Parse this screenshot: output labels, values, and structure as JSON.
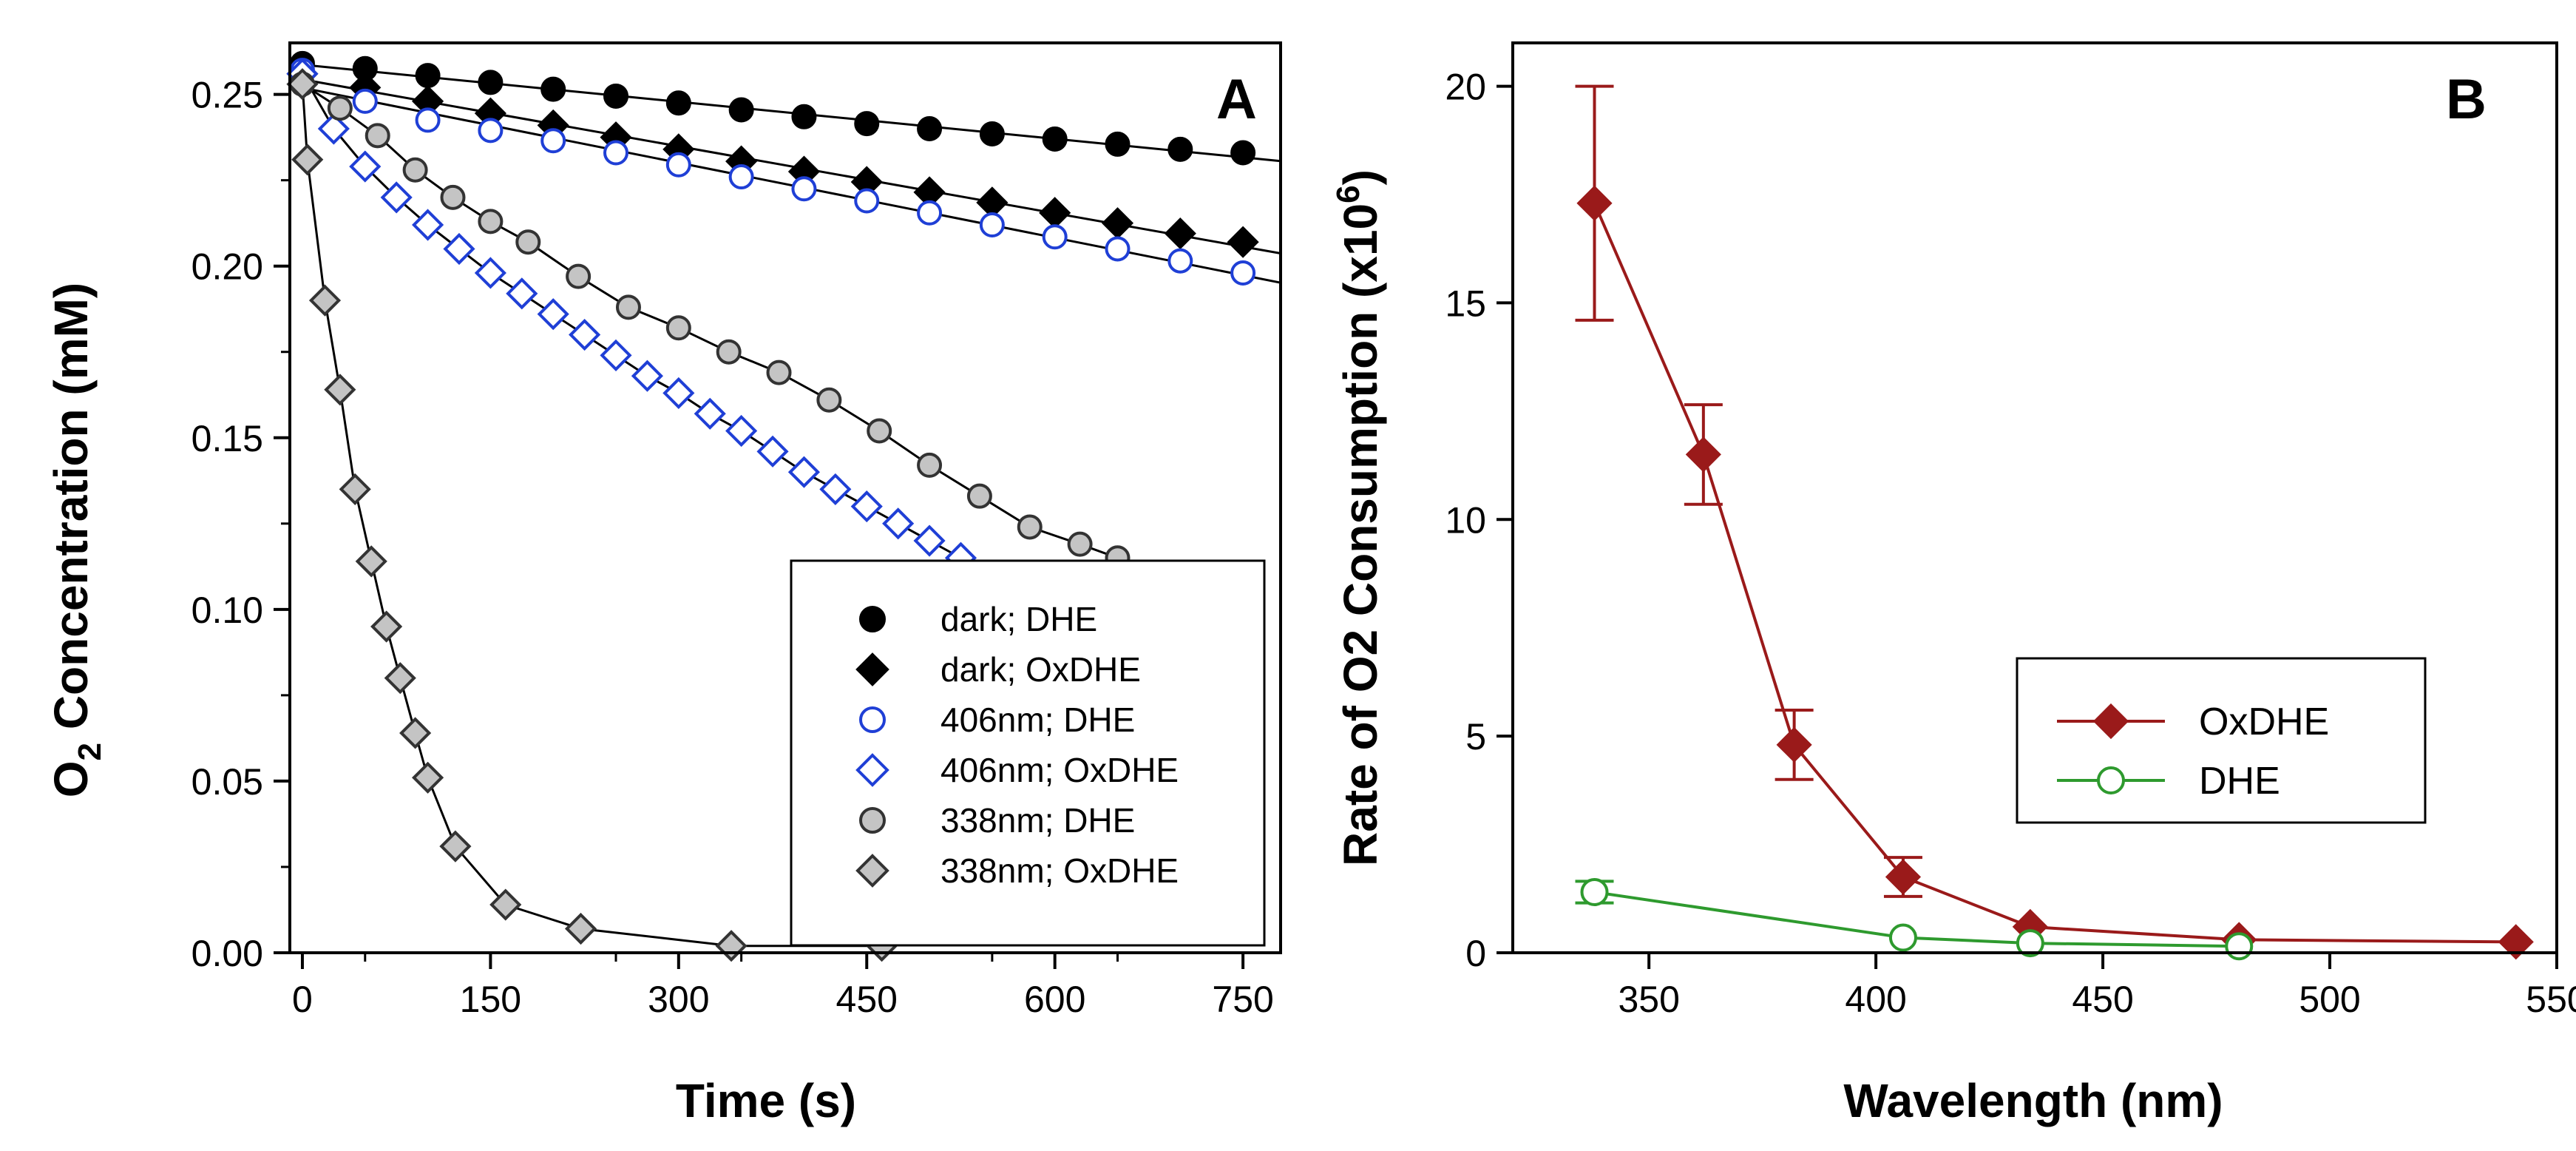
{
  "chart_data": [
    {
      "panel": "A",
      "type": "scatter",
      "panel_label": "A",
      "xlabel": "Time (s)",
      "ylabel": "O2 Concentration (mM)",
      "ylabel_parts": {
        "main": "O",
        "sub": "2",
        "rest": " Concentration (mM)"
      },
      "xlim": [
        -10,
        780
      ],
      "ylim": [
        0,
        0.265
      ],
      "xticks": [
        0,
        150,
        300,
        450,
        600,
        750
      ],
      "xtick_labels": [
        "0",
        "150",
        "300",
        "450",
        "600",
        "750"
      ],
      "yticks": [
        0,
        0.05,
        0.1,
        0.15,
        0.2,
        0.25
      ],
      "ytick_labels": [
        "0.00",
        "0.05",
        "0.10",
        "0.15",
        "0.20",
        "0.25"
      ],
      "legend_position": "lower-right",
      "series": [
        {
          "name": "dark; DHE",
          "marker": "circle",
          "fill": "#000000",
          "stroke": "#000000",
          "fit": "linear",
          "x": [
            0,
            50,
            100,
            150,
            200,
            250,
            300,
            350,
            400,
            450,
            500,
            550,
            600,
            650,
            700,
            750
          ],
          "y": [
            0.259,
            0.2575,
            0.2555,
            0.2535,
            0.2515,
            0.2495,
            0.2475,
            0.2455,
            0.2435,
            0.2415,
            0.24,
            0.2385,
            0.237,
            0.2355,
            0.234,
            0.233
          ]
        },
        {
          "name": "dark; OxDHE",
          "marker": "diamond",
          "fill": "#000000",
          "stroke": "#000000",
          "fit": "linear",
          "x": [
            0,
            50,
            100,
            150,
            200,
            250,
            300,
            350,
            400,
            450,
            500,
            550,
            600,
            650,
            700,
            750
          ],
          "y": [
            0.256,
            0.252,
            0.248,
            0.2445,
            0.241,
            0.2375,
            0.234,
            0.2305,
            0.2275,
            0.2245,
            0.2215,
            0.2185,
            0.2155,
            0.2125,
            0.2095,
            0.207
          ]
        },
        {
          "name": "406nm; DHE",
          "marker": "circle",
          "fill": "#ffffff",
          "stroke": "#1f3fd6",
          "fit": "linear",
          "x": [
            0,
            50,
            100,
            150,
            200,
            250,
            300,
            350,
            400,
            450,
            500,
            550,
            600,
            650,
            700,
            750
          ],
          "y": [
            0.257,
            0.248,
            0.2425,
            0.2395,
            0.2365,
            0.233,
            0.2295,
            0.226,
            0.2225,
            0.219,
            0.2155,
            0.212,
            0.2085,
            0.205,
            0.2015,
            0.198
          ]
        },
        {
          "name": "406nm; OxDHE",
          "marker": "diamond",
          "fill": "#ffffff",
          "stroke": "#1f3fd6",
          "fit": "exponential",
          "x": [
            0,
            25,
            50,
            75,
            100,
            125,
            150,
            175,
            200,
            225,
            250,
            275,
            300,
            325,
            350,
            375,
            400,
            425,
            450,
            475,
            500,
            525
          ],
          "y": [
            0.256,
            0.24,
            0.229,
            0.22,
            0.212,
            0.205,
            0.198,
            0.192,
            0.186,
            0.18,
            0.174,
            0.168,
            0.163,
            0.157,
            0.152,
            0.146,
            0.14,
            0.135,
            0.13,
            0.125,
            0.12,
            0.115
          ]
        },
        {
          "name": "338nm; DHE",
          "marker": "circle",
          "fill": "#c4c4c4",
          "stroke": "#333333",
          "fit": "exponential",
          "x": [
            0,
            30,
            60,
            90,
            120,
            150,
            180,
            220,
            260,
            300,
            340,
            380,
            420,
            460,
            500,
            540,
            580,
            620,
            650
          ],
          "y": [
            0.253,
            0.246,
            0.238,
            0.228,
            0.22,
            0.213,
            0.207,
            0.197,
            0.188,
            0.182,
            0.175,
            0.169,
            0.161,
            0.152,
            0.142,
            0.133,
            0.124,
            0.119,
            0.115
          ]
        },
        {
          "name": "338nm; OxDHE",
          "marker": "diamond",
          "fill": "#c4c4c4",
          "stroke": "#333333",
          "fit": "exponential-early",
          "x": [
            0,
            4,
            18,
            30,
            42,
            55,
            67,
            78,
            90,
            100,
            122,
            162,
            222,
            342,
            462
          ],
          "y": [
            0.253,
            0.231,
            0.19,
            0.164,
            0.135,
            0.114,
            0.095,
            0.08,
            0.064,
            0.051,
            0.031,
            0.014,
            0.007,
            0.002,
            0.002
          ]
        }
      ]
    },
    {
      "panel": "B",
      "type": "line",
      "panel_label": "B",
      "xlabel": "Wavelength (nm)",
      "ylabel": "Rate of O2 Consumption (x10",
      "ylabel_sup": "6",
      "ylabel_close": ")",
      "xlim": [
        320,
        550
      ],
      "ylim": [
        0,
        21
      ],
      "xticks": [
        350,
        400,
        450,
        500,
        550
      ],
      "xtick_labels": [
        "350",
        "400",
        "450",
        "500",
        "550"
      ],
      "yticks": [
        0,
        5,
        10,
        15,
        20
      ],
      "ytick_labels": [
        "0",
        "5",
        "10",
        "15",
        "20"
      ],
      "legend_position": "center-right",
      "series": [
        {
          "name": "OxDHE",
          "marker": "diamond",
          "fill": "#9a1a1a",
          "stroke": "#9a1a1a",
          "line_color": "#9a1a1a",
          "x": [
            338,
            362,
            382,
            406,
            434,
            480,
            541
          ],
          "y": [
            17.3,
            11.5,
            4.8,
            1.75,
            0.6,
            0.3,
            0.25
          ],
          "err": [
            2.7,
            1.15,
            0.8,
            0.45,
            0,
            0,
            0
          ]
        },
        {
          "name": "DHE",
          "marker": "circle",
          "fill": "#ffffff",
          "stroke": "#2e9a2e",
          "line_color": "#2e9a2e",
          "x": [
            338,
            406,
            434,
            480
          ],
          "y": [
            1.4,
            0.35,
            0.22,
            0.15
          ],
          "err": [
            0.25,
            0,
            0,
            0
          ]
        }
      ]
    }
  ]
}
